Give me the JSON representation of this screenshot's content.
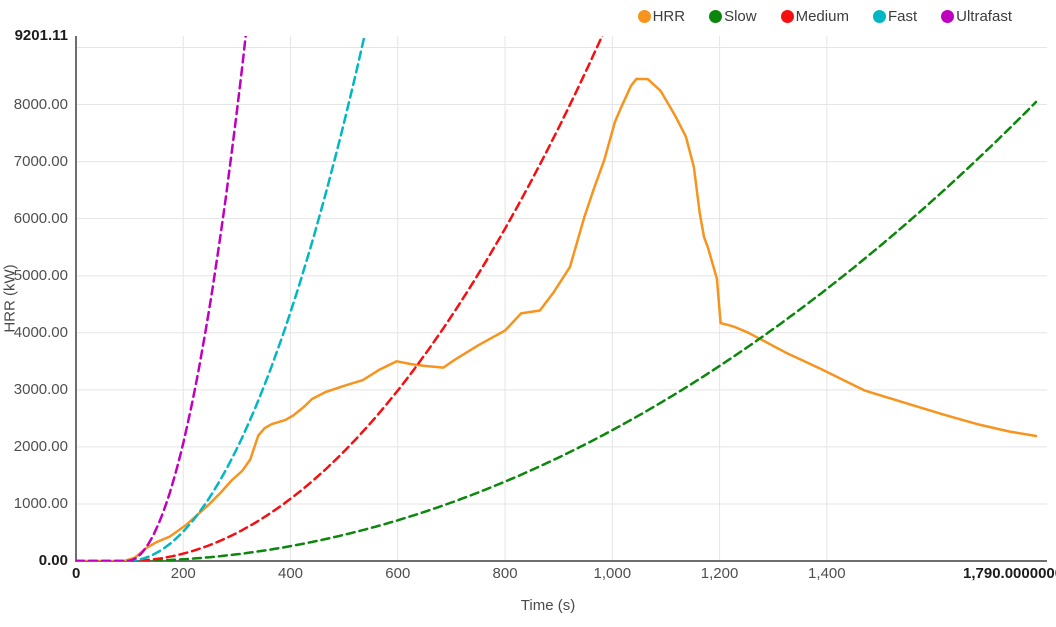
{
  "page": {
    "background": "#ffffff"
  },
  "legend": {
    "position": "top-right",
    "items": [
      {
        "label": "HRR",
        "color": "#f7941e"
      },
      {
        "label": "Slow",
        "color": "#0b870b"
      },
      {
        "label": "Medium",
        "color": "#f50f10"
      },
      {
        "label": "Fast",
        "color": "#00b7c4"
      },
      {
        "label": "Ultrafast",
        "color": "#bf00bf"
      }
    ]
  },
  "axes": {
    "x": {
      "title": "Time (s)",
      "origin_label": "0",
      "data_max_label": "1,790.0000000",
      "ticks": [
        200,
        400,
        600,
        800,
        1000,
        1200,
        1400
      ],
      "tick_labels": [
        "200",
        "400",
        "600",
        "800",
        "1,000",
        "1,200",
        "1,400"
      ]
    },
    "y": {
      "title": "HRR (kW)",
      "zero_label": "0.00",
      "max_label": "9201.11",
      "ticks": [
        1000,
        2000,
        3000,
        4000,
        5000,
        6000,
        7000,
        8000
      ],
      "tick_labels": [
        "1000.00",
        "2000.00",
        "3000.00",
        "4000.00",
        "5000.00",
        "6000.00",
        "7000.00",
        "8000.00"
      ],
      "extra_gridline_values": [
        9000
      ]
    }
  },
  "chart_data": {
    "type": "line",
    "title": "",
    "xlabel": "Time (s)",
    "ylabel": "HRR (kW)",
    "xlim": [
      0,
      1790
    ],
    "ylim": [
      0,
      9201.11
    ],
    "grid": true,
    "legend_position": "top-right",
    "series": [
      {
        "name": "HRR",
        "color": "#f7941e",
        "style": "solid",
        "peak_kW": 8450,
        "peak_time_s": 1050,
        "points": [
          [
            0,
            0
          ],
          [
            90,
            0
          ],
          [
            110,
            60
          ],
          [
            130,
            220
          ],
          [
            150,
            330
          ],
          [
            175,
            430
          ],
          [
            205,
            630
          ],
          [
            230,
            840
          ],
          [
            250,
            1010
          ],
          [
            270,
            1200
          ],
          [
            290,
            1410
          ],
          [
            310,
            1580
          ],
          [
            325,
            1780
          ],
          [
            340,
            2200
          ],
          [
            352,
            2330
          ],
          [
            365,
            2400
          ],
          [
            390,
            2470
          ],
          [
            405,
            2550
          ],
          [
            425,
            2700
          ],
          [
            440,
            2840
          ],
          [
            465,
            2960
          ],
          [
            500,
            3070
          ],
          [
            535,
            3170
          ],
          [
            565,
            3350
          ],
          [
            598,
            3500
          ],
          [
            625,
            3450
          ],
          [
            650,
            3420
          ],
          [
            685,
            3390
          ],
          [
            705,
            3520
          ],
          [
            750,
            3780
          ],
          [
            800,
            4040
          ],
          [
            830,
            4340
          ],
          [
            865,
            4390
          ],
          [
            890,
            4700
          ],
          [
            921,
            5150
          ],
          [
            948,
            6030
          ],
          [
            967,
            6560
          ],
          [
            985,
            7030
          ],
          [
            1005,
            7700
          ],
          [
            1017,
            7960
          ],
          [
            1035,
            8330
          ],
          [
            1045,
            8450
          ],
          [
            1066,
            8445
          ],
          [
            1090,
            8240
          ],
          [
            1118,
            7790
          ],
          [
            1137,
            7440
          ],
          [
            1152,
            6910
          ],
          [
            1163,
            6100
          ],
          [
            1171,
            5680
          ],
          [
            1178,
            5500
          ],
          [
            1195,
            4950
          ],
          [
            1202,
            4170
          ],
          [
            1215,
            4140
          ],
          [
            1229,
            4100
          ],
          [
            1254,
            4000
          ],
          [
            1322,
            3660
          ],
          [
            1390,
            3360
          ],
          [
            1470,
            2990
          ],
          [
            1560,
            2730
          ],
          [
            1620,
            2560
          ],
          [
            1680,
            2400
          ],
          [
            1740,
            2270
          ],
          [
            1790,
            2190
          ]
        ]
      },
      {
        "name": "Slow",
        "color": "#0b870b",
        "style": "dashed",
        "growth_model": "t-squared",
        "alpha_kW_per_s2": 0.0028,
        "t0_s": 95,
        "points": [
          [
            0,
            0
          ],
          [
            95,
            0
          ],
          [
            295,
            112
          ],
          [
            495,
            448
          ],
          [
            695,
            1008
          ],
          [
            895,
            1792
          ],
          [
            1095,
            2800
          ],
          [
            1295,
            4032
          ],
          [
            1495,
            5488
          ],
          [
            1695,
            7168
          ],
          [
            1790,
            8043
          ]
        ]
      },
      {
        "name": "Medium",
        "color": "#f50f10",
        "style": "dashed",
        "growth_model": "t-squared",
        "alpha_kW_per_s2": 0.01172,
        "t0_s": 95,
        "points": [
          [
            0,
            0
          ],
          [
            95,
            0
          ],
          [
            195,
            117
          ],
          [
            295,
            469
          ],
          [
            395,
            1055
          ],
          [
            495,
            1876
          ],
          [
            595,
            2930
          ],
          [
            695,
            4219
          ],
          [
            795,
            5742
          ],
          [
            895,
            7501
          ],
          [
            981,
            9201
          ]
        ]
      },
      {
        "name": "Fast",
        "color": "#00b7c4",
        "style": "dashed",
        "growth_model": "t-squared",
        "alpha_kW_per_s2": 0.0469,
        "t0_s": 95,
        "points": [
          [
            0,
            0
          ],
          [
            95,
            0
          ],
          [
            145,
            117
          ],
          [
            195,
            469
          ],
          [
            245,
            1055
          ],
          [
            295,
            1876
          ],
          [
            345,
            2931
          ],
          [
            395,
            4221
          ],
          [
            445,
            5746
          ],
          [
            495,
            7504
          ],
          [
            538,
            9201
          ]
        ]
      },
      {
        "name": "Ultrafast",
        "color": "#bf00bf",
        "style": "dashed",
        "growth_model": "t-squared",
        "alpha_kW_per_s2": 0.1876,
        "t0_s": 95,
        "points": [
          [
            0,
            0
          ],
          [
            95,
            0
          ],
          [
            135,
            300
          ],
          [
            175,
            1201
          ],
          [
            215,
            2702
          ],
          [
            255,
            4803
          ],
          [
            295,
            7504
          ],
          [
            317,
            9201
          ]
        ]
      }
    ]
  },
  "style": {
    "grid_color": "#e5e5e5",
    "axis_color": "#6e6e6e",
    "tick_text_color": "#4f4f4f",
    "bold_text_color": "#1c1c1c"
  }
}
